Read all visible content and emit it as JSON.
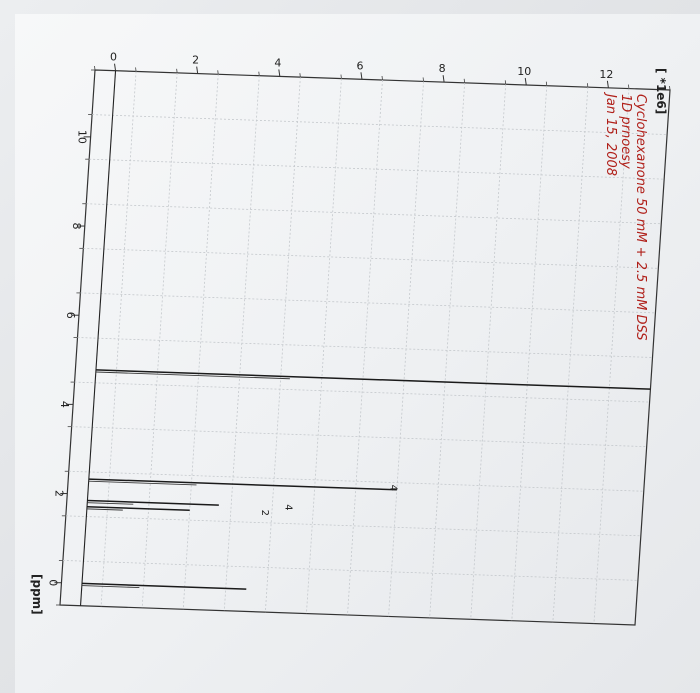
{
  "spectrum": {
    "title": "Cyclohexanone 50 mM + 2.5 mM DSS",
    "experiment": "1D prnoesy",
    "date": "Jan 15, 2008",
    "y_multiplier": "[ *1e6]",
    "x_unit": "[ppm]"
  },
  "chart_data": {
    "type": "line",
    "title": "Cyclohexanone 50 mM + 2.5 mM DSS",
    "subtitle": "1D prnoesy",
    "xlabel": "[ppm]",
    "ylabel": "[ *1e6]",
    "x_reversed": true,
    "xlim": [
      11.5,
      -0.5
    ],
    "ylim": [
      -0.5,
      13.5
    ],
    "x_ticks": [
      10,
      8,
      6,
      4,
      2,
      0
    ],
    "y_ticks": [
      0,
      2,
      4,
      6,
      8,
      10,
      12
    ],
    "grid": true,
    "series": [
      {
        "peaks": [
          {
            "ppm": 4.79,
            "intensity": 13.5
          },
          {
            "ppm": 2.34,
            "intensity": 7.5
          },
          {
            "ppm": 1.86,
            "intensity": 3.2
          },
          {
            "ppm": 1.72,
            "intensity": 2.5
          },
          {
            "ppm": 0.0,
            "intensity": 4.0
          }
        ]
      }
    ],
    "integrals": [
      {
        "ppm": 2.38,
        "label": "4"
      },
      {
        "ppm": 1.86,
        "label": "4"
      },
      {
        "ppm": 1.72,
        "label": "2"
      }
    ]
  }
}
